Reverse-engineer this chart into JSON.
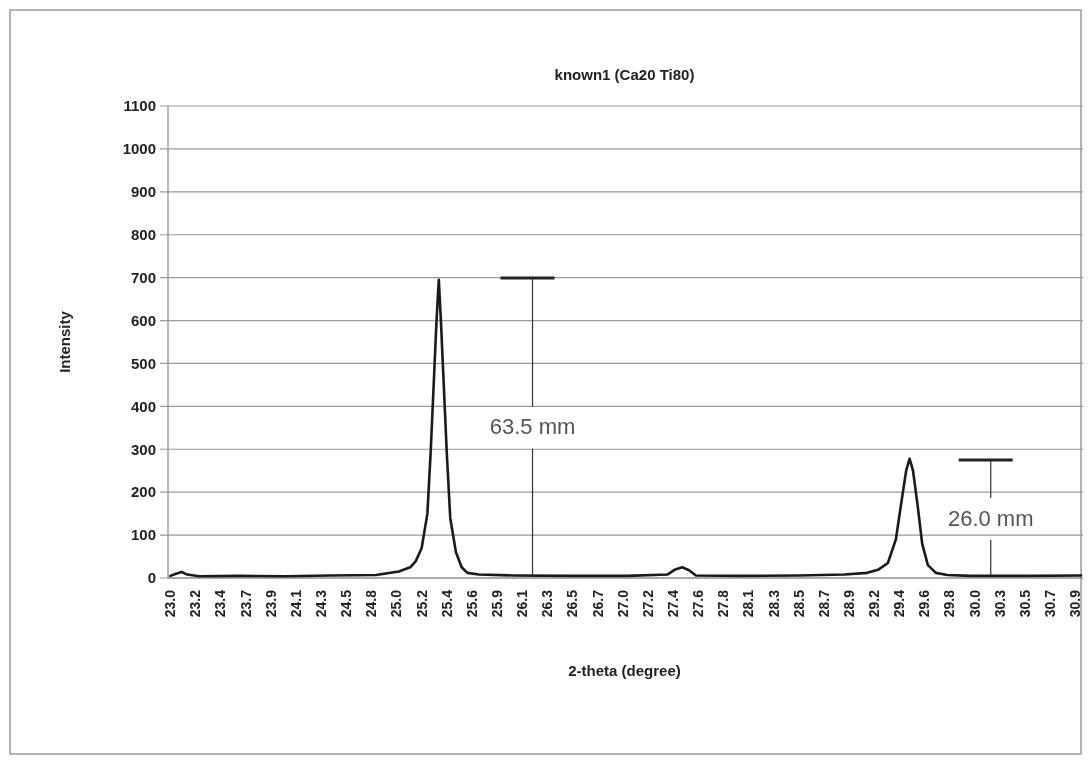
{
  "chart_data": {
    "type": "line",
    "title": "known1 (Ca20 Ti80)",
    "xlabel": "2-theta (degree)",
    "ylabel": "Intensity",
    "xlim": [
      22.98,
      30.97
    ],
    "ylim": [
      0,
      1100
    ],
    "xticks": [
      {
        "value": 23.0,
        "label": "23.0"
      },
      {
        "value": 23.22,
        "label": "23.2"
      },
      {
        "value": 23.44,
        "label": "23.4"
      },
      {
        "value": 23.66,
        "label": "23.7"
      },
      {
        "value": 23.88,
        "label": "23.9"
      },
      {
        "value": 24.1,
        "label": "24.1"
      },
      {
        "value": 24.32,
        "label": "24.3"
      },
      {
        "value": 24.54,
        "label": "24.5"
      },
      {
        "value": 24.76,
        "label": "24.8"
      },
      {
        "value": 24.98,
        "label": "25.0"
      },
      {
        "value": 25.2,
        "label": "25.2"
      },
      {
        "value": 25.42,
        "label": "25.4"
      },
      {
        "value": 25.64,
        "label": "25.6"
      },
      {
        "value": 25.86,
        "label": "25.9"
      },
      {
        "value": 26.08,
        "label": "26.1"
      },
      {
        "value": 26.3,
        "label": "26.3"
      },
      {
        "value": 26.52,
        "label": "26.5"
      },
      {
        "value": 26.74,
        "label": "26.7"
      },
      {
        "value": 26.96,
        "label": "27.0"
      },
      {
        "value": 27.18,
        "label": "27.2"
      },
      {
        "value": 27.4,
        "label": "27.4"
      },
      {
        "value": 27.62,
        "label": "27.6"
      },
      {
        "value": 27.84,
        "label": "27.8"
      },
      {
        "value": 28.06,
        "label": "28.1"
      },
      {
        "value": 28.28,
        "label": "28.3"
      },
      {
        "value": 28.5,
        "label": "28.5"
      },
      {
        "value": 28.72,
        "label": "28.7"
      },
      {
        "value": 28.94,
        "label": "28.9"
      },
      {
        "value": 29.16,
        "label": "29.2"
      },
      {
        "value": 29.38,
        "label": "29.4"
      },
      {
        "value": 29.6,
        "label": "29.6"
      },
      {
        "value": 29.82,
        "label": "29.8"
      },
      {
        "value": 30.04,
        "label": "30.0"
      },
      {
        "value": 30.26,
        "label": "30.3"
      },
      {
        "value": 30.48,
        "label": "30.5"
      },
      {
        "value": 30.7,
        "label": "30.7"
      },
      {
        "value": 30.92,
        "label": "30.9"
      }
    ],
    "yticks": [
      0,
      100,
      200,
      300,
      400,
      500,
      600,
      700,
      800,
      900,
      1000,
      1100
    ],
    "grid": "y",
    "marker": "none",
    "line_style": "solid",
    "x": [
      23.0,
      23.05,
      23.1,
      23.15,
      23.25,
      23.6,
      24.0,
      24.4,
      24.8,
      25.0,
      25.1,
      25.15,
      25.2,
      25.25,
      25.28,
      25.31,
      25.33,
      25.35,
      25.37,
      25.39,
      25.42,
      25.45,
      25.5,
      25.55,
      25.6,
      25.7,
      26.0,
      26.5,
      27.0,
      27.35,
      27.42,
      27.48,
      27.54,
      27.6,
      28.0,
      28.5,
      28.9,
      29.1,
      29.2,
      29.28,
      29.35,
      29.4,
      29.44,
      29.47,
      29.5,
      29.54,
      29.58,
      29.63,
      29.7,
      29.8,
      30.0,
      30.5,
      30.97
    ],
    "series": [
      {
        "color": "#1a1a1a",
        "values": [
          5,
          10,
          14,
          8,
          4,
          5,
          4,
          6,
          7,
          15,
          25,
          40,
          70,
          150,
          300,
          480,
          600,
          695,
          590,
          470,
          290,
          140,
          60,
          25,
          12,
          8,
          6,
          5,
          5,
          8,
          20,
          25,
          18,
          6,
          5,
          6,
          8,
          12,
          20,
          35,
          90,
          180,
          250,
          278,
          250,
          170,
          80,
          30,
          12,
          7,
          5,
          5,
          6
        ]
      }
    ],
    "annotations": [
      {
        "text": "63.5 mm",
        "x": 26.17,
        "y": 6
      },
      {
        "text": "26.0 mm",
        "x": 30.18,
        "y": 5
      }
    ]
  }
}
